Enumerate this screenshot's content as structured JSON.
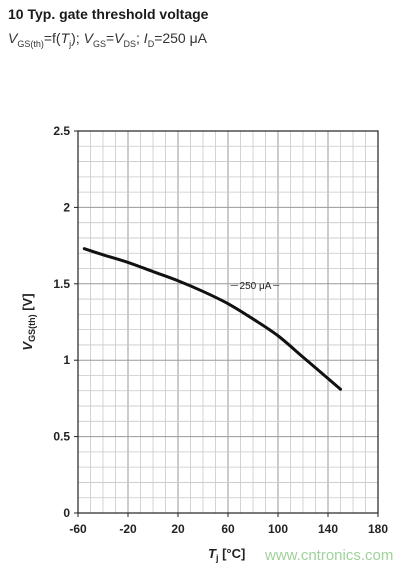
{
  "header": {
    "title": "10 Typ. gate threshold voltage",
    "sub_v": "V",
    "sub_gsth": "GS(th)",
    "sub_eq1": "=f(",
    "sub_t": "T",
    "sub_j": "j",
    "sub_eq2": "); ",
    "sub_v2": "V",
    "sub_gs": "GS",
    "sub_eq3": "=",
    "sub_v3": "V",
    "sub_ds": "DS",
    "sub_eq4": "; ",
    "sub_i": "I",
    "sub_d": "D",
    "sub_eq5": "=250 μA"
  },
  "watermark": "www.cntronics.com",
  "chart_data": {
    "type": "line",
    "xlabel_main": "T",
    "xlabel_sub": "j",
    "xlabel_unit": " [°C]",
    "ylabel_main": "V",
    "ylabel_sub": "GS(th)",
    "ylabel_unit": " [V]",
    "xlim": [
      -60,
      180
    ],
    "ylim": [
      0,
      2.5
    ],
    "xticks": [
      "-60",
      "-20",
      "20",
      "60",
      "100",
      "140",
      "180"
    ],
    "yticks": [
      "0",
      "0.5",
      "1",
      "1.5",
      "2",
      "2.5"
    ],
    "grid": true,
    "series": [
      {
        "name": "250 μA",
        "x": [
          -55,
          -40,
          -20,
          0,
          20,
          40,
          60,
          80,
          100,
          120,
          140,
          150
        ],
        "y": [
          1.73,
          1.69,
          1.64,
          1.58,
          1.52,
          1.45,
          1.37,
          1.27,
          1.16,
          1.02,
          0.88,
          0.81
        ]
      }
    ]
  }
}
